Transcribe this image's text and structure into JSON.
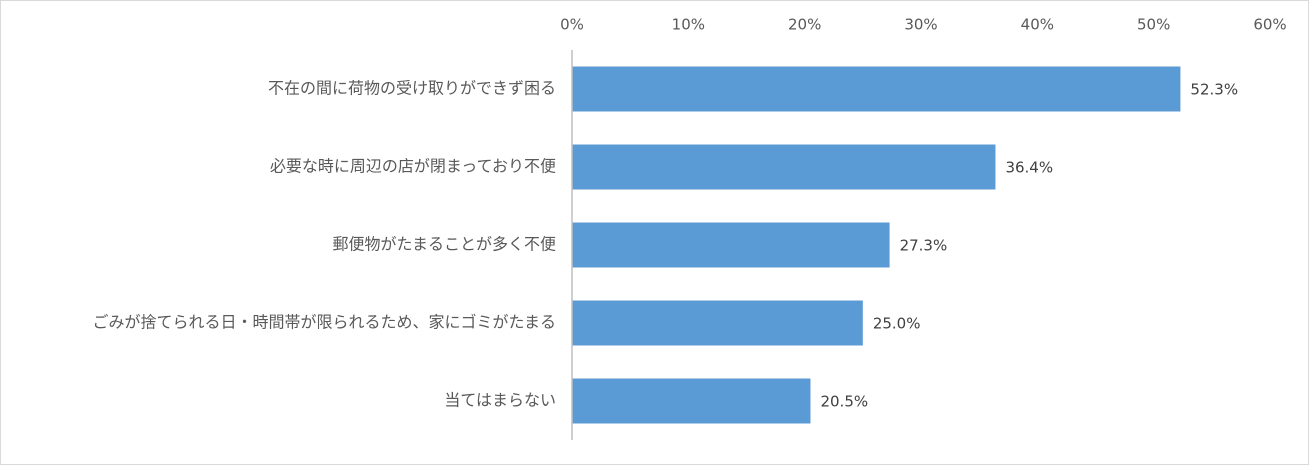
{
  "chart_data": {
    "type": "bar",
    "orientation": "horizontal",
    "categories": [
      "不在の間に荷物の受け取りができず困る",
      "必要な時に周辺の店が閉まっており不便",
      "郵便物がたまることが多く不便",
      "ごみが捨てられる日・時間帯が限られるため、家にゴミがたまる",
      "当てはまらない"
    ],
    "values": [
      52.3,
      36.4,
      27.3,
      25.0,
      20.5
    ],
    "value_labels": [
      "52.3%",
      "36.4%",
      "27.3%",
      "25.0%",
      "20.5%"
    ],
    "color": "#5b9bd5",
    "xlim": [
      0,
      60
    ],
    "xticks": [
      {
        "value": 0,
        "label": "0%"
      },
      {
        "value": 10,
        "label": "10%"
      },
      {
        "value": 20,
        "label": "20%"
      },
      {
        "value": 30,
        "label": "30%"
      },
      {
        "value": 40,
        "label": "40%"
      },
      {
        "value": 50,
        "label": "50%"
      },
      {
        "value": 60,
        "label": "60%"
      }
    ],
    "grid": false
  }
}
